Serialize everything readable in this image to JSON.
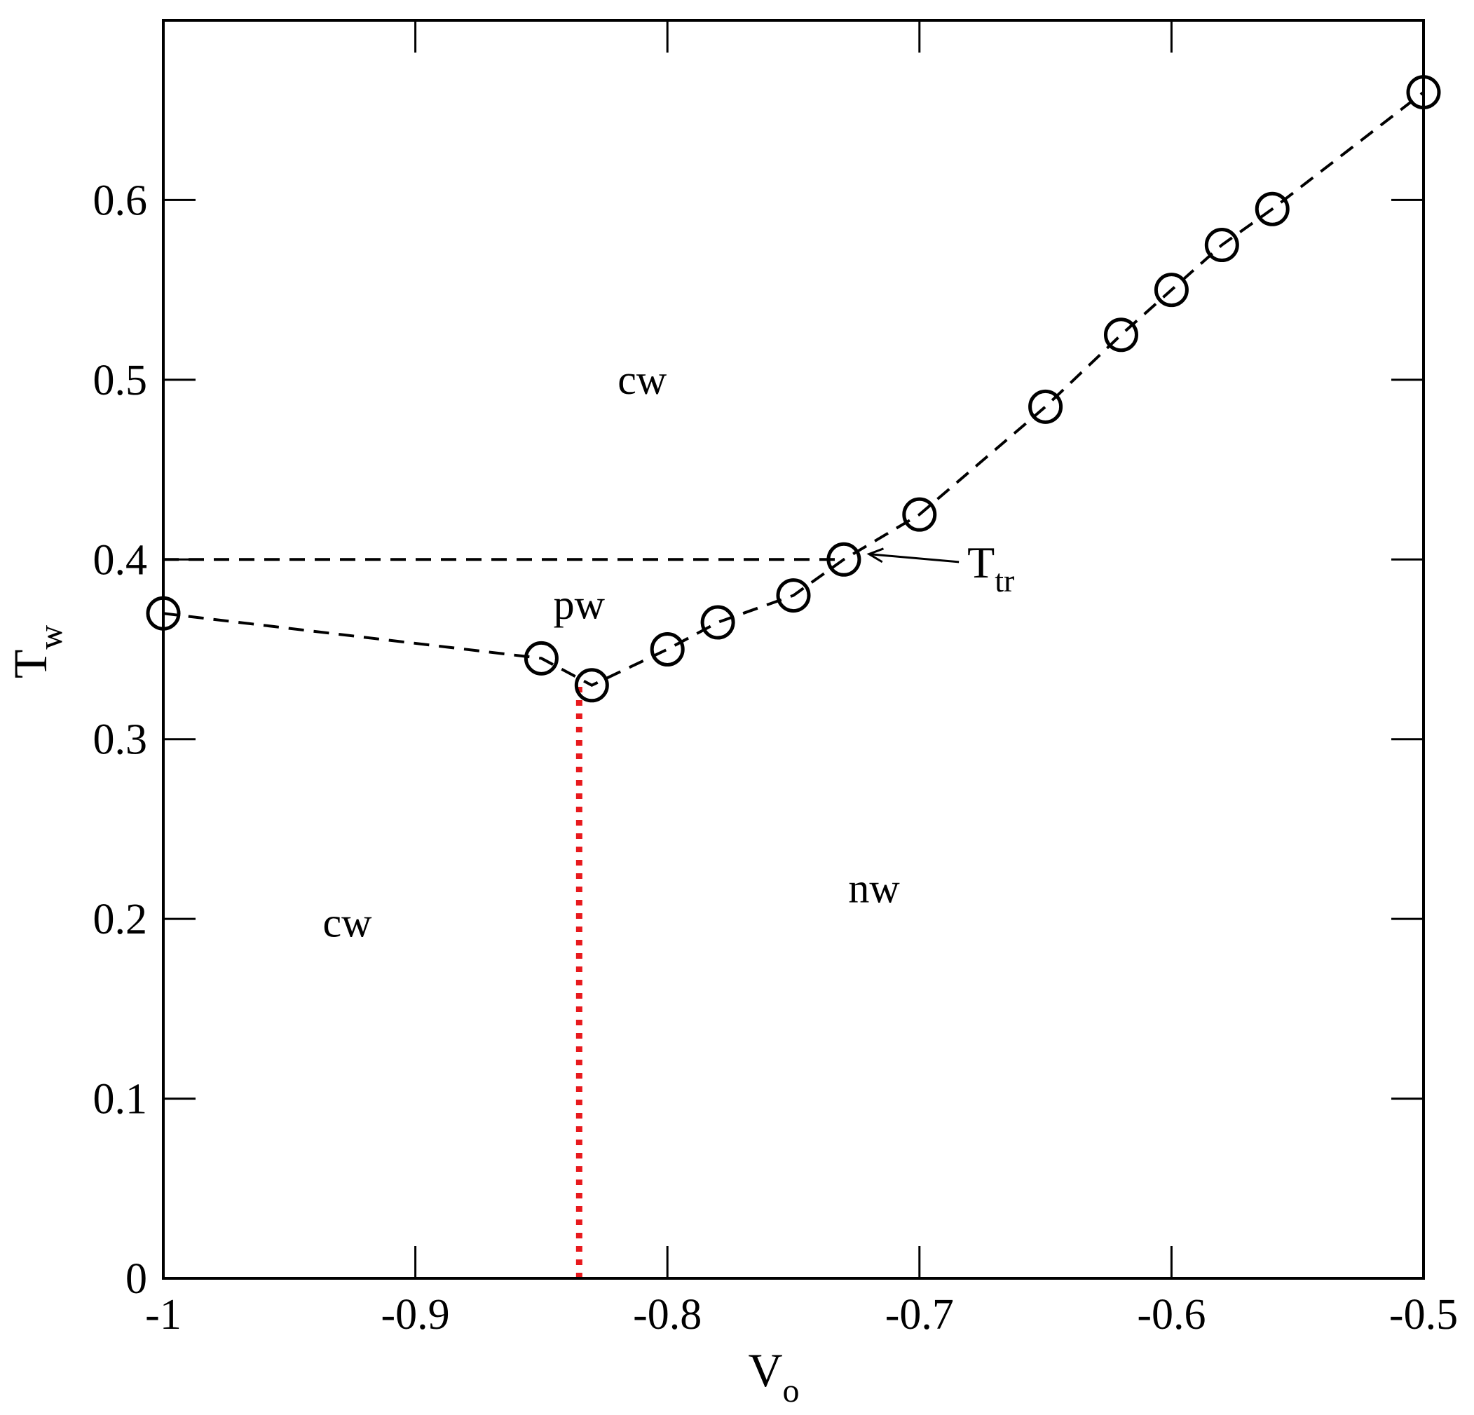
{
  "chart_data": {
    "type": "scatter",
    "xlabel": "V",
    "xlabel_sub": "o",
    "ylabel": "T",
    "ylabel_sub": "w",
    "xlim": [
      -1,
      -0.5
    ],
    "ylim": [
      0,
      0.7
    ],
    "x_ticks": [
      -1,
      -0.9,
      -0.8,
      -0.7,
      -0.6,
      -0.5
    ],
    "x_tick_labels": [
      "-1",
      "-0.9",
      "-0.8",
      "-0.7",
      "-0.6",
      "-0.5"
    ],
    "y_ticks": [
      0,
      0.1,
      0.2,
      0.3,
      0.4,
      0.5,
      0.6
    ],
    "y_tick_labels": [
      "0",
      "0.1",
      "0.2",
      "0.3",
      "0.4",
      "0.5",
      "0.6"
    ],
    "grid": false,
    "series": [
      {
        "style": "dashed-line-open-circles",
        "color": "#000000",
        "points": [
          {
            "x": -1.0,
            "y": 0.37
          },
          {
            "x": -0.85,
            "y": 0.345
          },
          {
            "x": -0.83,
            "y": 0.33
          },
          {
            "x": -0.8,
            "y": 0.35
          },
          {
            "x": -0.78,
            "y": 0.365
          },
          {
            "x": -0.75,
            "y": 0.38
          },
          {
            "x": -0.73,
            "y": 0.4
          },
          {
            "x": -0.7,
            "y": 0.425
          },
          {
            "x": -0.65,
            "y": 0.485
          },
          {
            "x": -0.62,
            "y": 0.525
          },
          {
            "x": -0.6,
            "y": 0.55
          },
          {
            "x": -0.58,
            "y": 0.575
          },
          {
            "x": -0.56,
            "y": 0.595
          },
          {
            "x": -0.5,
            "y": 0.66
          }
        ]
      }
    ],
    "reference_lines": [
      {
        "style": "dashed",
        "color": "#000000",
        "from": {
          "x": -1.0,
          "y": 0.4
        },
        "to": {
          "x": -0.73,
          "y": 0.4
        }
      },
      {
        "style": "dotted",
        "color": "#e8191d",
        "from": {
          "x": -0.835,
          "y": 0.0
        },
        "to": {
          "x": -0.835,
          "y": 0.33
        }
      }
    ],
    "region_labels": [
      {
        "text": "cw",
        "x": -0.81,
        "y": 0.5
      },
      {
        "text": "pw",
        "x": -0.835,
        "y": 0.375
      },
      {
        "text": "cw",
        "x": -0.927,
        "y": 0.198
      },
      {
        "text": "nw",
        "x": -0.718,
        "y": 0.217
      }
    ],
    "annotation": {
      "text": "T",
      "sub": "tr",
      "arrow_to": {
        "x": -0.72,
        "y": 0.403
      },
      "text_at": {
        "x": -0.681,
        "y": 0.39
      }
    }
  }
}
